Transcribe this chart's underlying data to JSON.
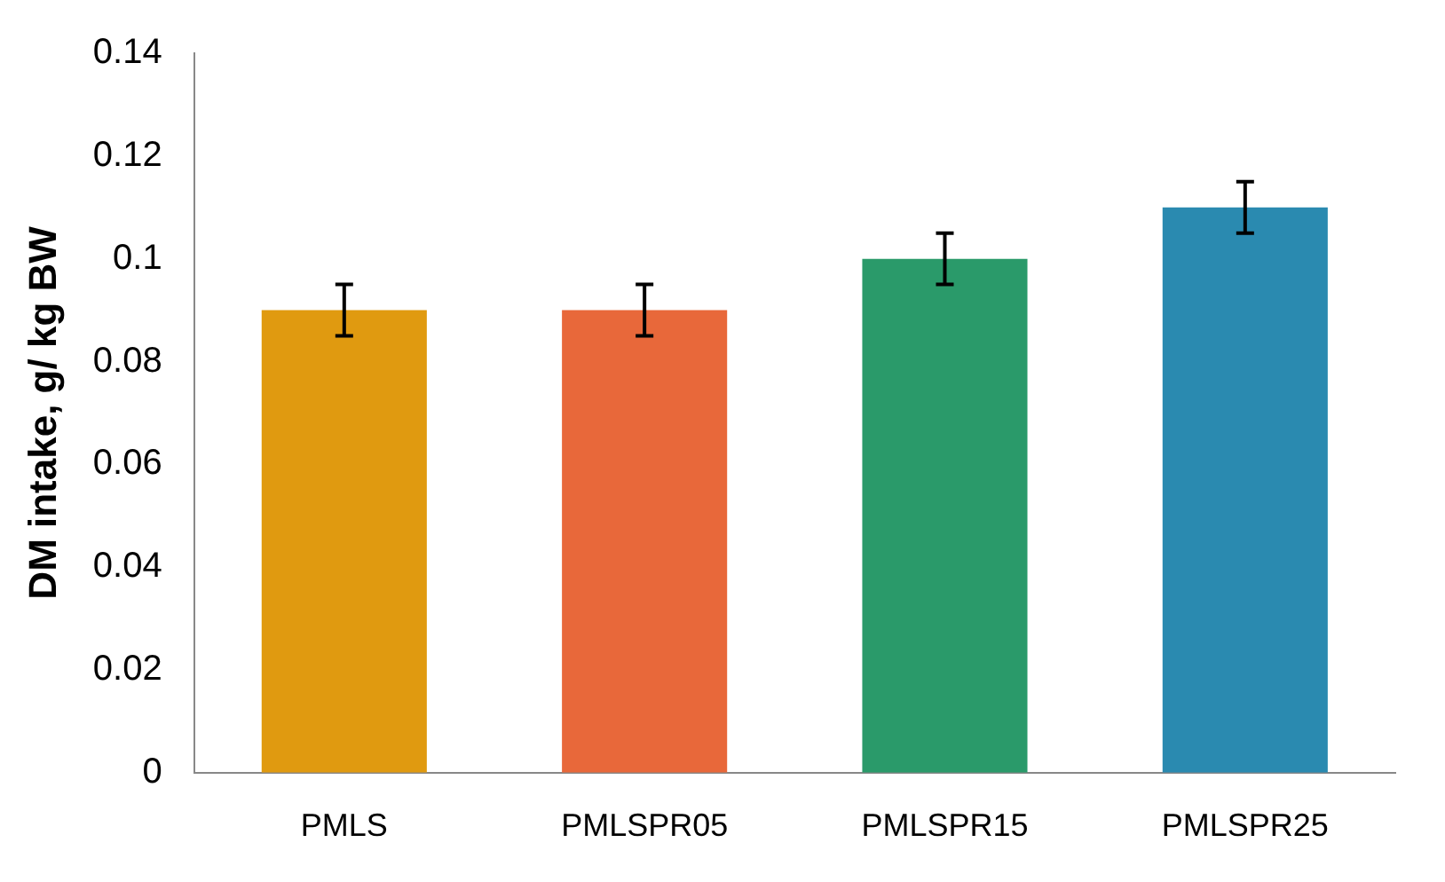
{
  "chart_data": {
    "type": "bar",
    "ylabel": "DM intake, g/ kg BW",
    "categories": [
      "PMLS",
      "PMLSPR05",
      "PMLSPR15",
      "PMLSPR25"
    ],
    "values": [
      0.09,
      0.09,
      0.1,
      0.11
    ],
    "errors": [
      0.005,
      0.005,
      0.005,
      0.005
    ],
    "colors": [
      "#e09a10",
      "#e8683a",
      "#2a9a6a",
      "#2a8ab0"
    ],
    "ylim": [
      0,
      0.14
    ],
    "yticks": [
      0,
      0.02,
      0.04,
      0.06,
      0.08,
      0.1,
      0.12,
      0.14
    ],
    "grid": false,
    "legend": false
  }
}
